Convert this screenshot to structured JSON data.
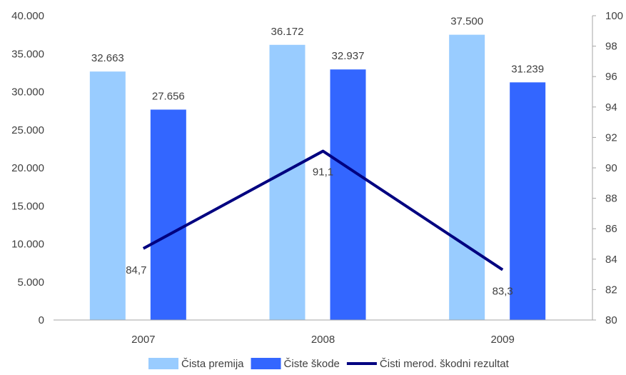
{
  "chart_data": {
    "type": "bar",
    "categories": [
      "2007",
      "2008",
      "2009"
    ],
    "series": [
      {
        "name": "Čista premija",
        "kind": "bar",
        "axis": "left",
        "color": "#99ccff",
        "values": [
          32663,
          36172,
          37500
        ],
        "labels": [
          "32.663",
          "36.172",
          "37.500"
        ]
      },
      {
        "name": "Čiste škode",
        "kind": "bar",
        "axis": "left",
        "color": "#3366ff",
        "values": [
          27656,
          32937,
          31239
        ],
        "labels": [
          "27.656",
          "32.937",
          "31.239"
        ]
      },
      {
        "name": "Čisti merod. škodni rezultat",
        "kind": "line",
        "axis": "right",
        "color": "#000080",
        "values": [
          84.7,
          91.1,
          83.3
        ],
        "labels": [
          "84,7",
          "91,1",
          "83,3"
        ]
      }
    ],
    "y_left": {
      "min": 0,
      "max": 40000,
      "ticks": [
        "0",
        "5.000",
        "10.000",
        "15.000",
        "20.000",
        "25.000",
        "30.000",
        "35.000",
        "40.000"
      ]
    },
    "y_right": {
      "min": 80,
      "max": 100,
      "ticks": [
        "80",
        "82",
        "84",
        "86",
        "88",
        "90",
        "92",
        "94",
        "96",
        "98",
        "100"
      ]
    },
    "grid": false,
    "legend_position": "bottom"
  }
}
